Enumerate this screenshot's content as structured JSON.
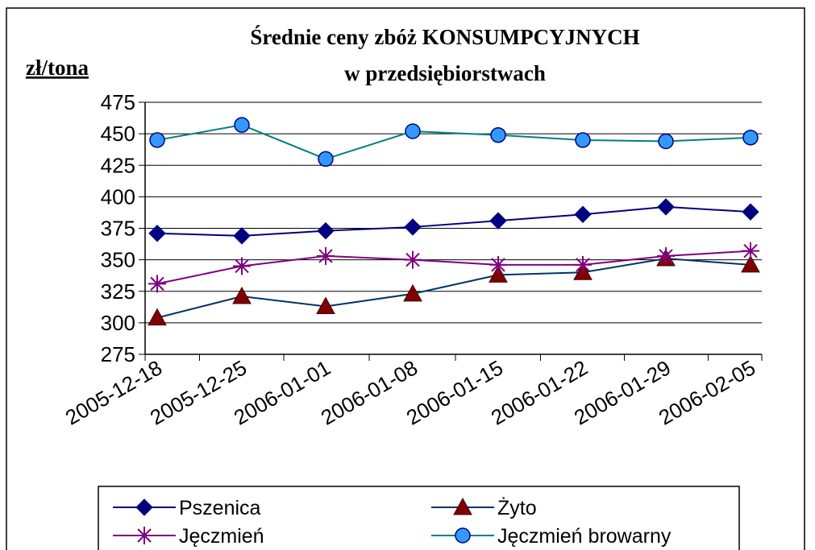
{
  "chart_data": {
    "type": "line",
    "title_line1": "Średnie ceny zbóż KONSUMPCYJNYCH",
    "title_line2": "w przedsiębiorstwach",
    "ylabel": "zł/tona",
    "xlabel": "",
    "ylim": [
      275,
      475
    ],
    "yticks": [
      275,
      300,
      325,
      350,
      375,
      400,
      425,
      450,
      475
    ],
    "grid": true,
    "legend_position": "bottom",
    "categories": [
      "2005-12-18",
      "2005-12-25",
      "2006-01-01",
      "2006-01-08",
      "2006-01-15",
      "2006-01-22",
      "2006-01-29",
      "2006-02-05"
    ],
    "series": [
      {
        "name": "Pszenica",
        "color": "#000080",
        "marker": "diamond",
        "values": [
          371,
          369,
          373,
          376,
          381,
          386,
          392,
          388
        ]
      },
      {
        "name": "Żyto",
        "color": "#003366",
        "marker_color": "#800000",
        "marker": "triangle",
        "values": [
          304,
          321,
          313,
          323,
          338,
          340,
          351,
          346
        ]
      },
      {
        "name": "Jęczmień",
        "color": "#800080",
        "marker": "star",
        "values": [
          331,
          345,
          353,
          350,
          346,
          346,
          353,
          357
        ]
      },
      {
        "name": "Jęczmień browarny",
        "color": "#008080",
        "marker_color": "#3399ff",
        "marker": "circle",
        "values": [
          445,
          457,
          430,
          452,
          449,
          445,
          444,
          447
        ]
      }
    ]
  }
}
